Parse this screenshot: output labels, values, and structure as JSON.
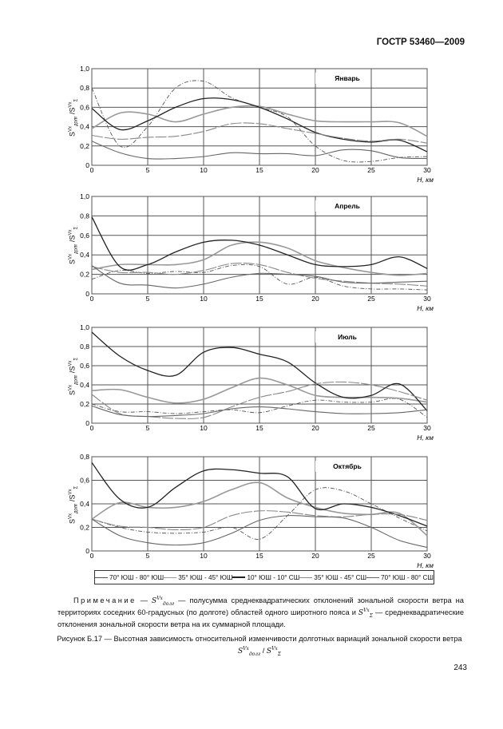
{
  "header": {
    "standard": "ГОСТР 53460—2009"
  },
  "x_axis_label": "H, км",
  "y_axis_label": {
    "base": "S",
    "sup": "Vx",
    "sub": "долг",
    "sep": " /",
    "base2": "S",
    "sup2": "Vx",
    "sub2": "Σ"
  },
  "legend": [
    {
      "label": "70° ЮШ - 80° ЮШ",
      "color": "#555555"
    },
    {
      "label": "35° ЮШ - 45° ЮШ",
      "color": "#999999"
    },
    {
      "label": "10° ЮШ - 10° СШ",
      "color": "#222222"
    },
    {
      "label": "35° ЮШ - 45° СШ",
      "color": "#888888"
    },
    {
      "label": "70° ЮШ - 80° СШ",
      "color": "#666666"
    }
  ],
  "chart_data": [
    {
      "type": "line",
      "title": "Январь",
      "xlabel": "H, км",
      "ylabel": "S^Vx_долг / S^Vx_Σ",
      "xlim": [
        0,
        30
      ],
      "ylim": [
        0,
        1.0
      ],
      "grid": true,
      "xticks": [
        "0",
        "5",
        "10",
        "15",
        "20",
        "25",
        "30"
      ],
      "yticks": [
        "0",
        "0,2",
        "0,4",
        "0,6",
        "0,8",
        "1,0"
      ],
      "x": [
        0,
        2.5,
        5,
        7.5,
        10,
        12.5,
        15,
        17.5,
        20,
        22.5,
        25,
        27.5,
        30
      ],
      "series": [
        {
          "name": "70° ЮШ - 80° ЮШ",
          "values": [
            0.8,
            0.2,
            0.4,
            0.8,
            0.87,
            0.7,
            0.6,
            0.5,
            0.2,
            0.05,
            0.04,
            0.08,
            0.09
          ]
        },
        {
          "name": "35° ЮШ - 45° ЮШ",
          "values": [
            0.38,
            0.54,
            0.53,
            0.45,
            0.53,
            0.6,
            0.61,
            0.53,
            0.46,
            0.45,
            0.45,
            0.44,
            0.3
          ]
        },
        {
          "name": "10° ЮШ - 10° СШ",
          "values": [
            0.59,
            0.37,
            0.46,
            0.6,
            0.69,
            0.68,
            0.6,
            0.48,
            0.34,
            0.27,
            0.24,
            0.26,
            0.14
          ]
        },
        {
          "name": "35° ЮШ - 45° СШ",
          "values": [
            0.31,
            0.27,
            0.29,
            0.3,
            0.35,
            0.43,
            0.43,
            0.38,
            0.33,
            0.28,
            0.25,
            0.27,
            0.23
          ]
        },
        {
          "name": "70° ЮШ - 80° СШ",
          "values": [
            0.25,
            0.13,
            0.07,
            0.07,
            0.09,
            0.13,
            0.12,
            0.12,
            0.1,
            0.16,
            0.15,
            0.08,
            0.07
          ]
        }
      ]
    },
    {
      "type": "line",
      "title": "Апрель",
      "xlabel": "H, км",
      "ylabel": "S^Vx_долг / S^Vx_Σ",
      "xlim": [
        0,
        30
      ],
      "ylim": [
        0,
        1.0
      ],
      "grid": true,
      "xticks": [
        "0",
        "5",
        "10",
        "15",
        "20",
        "25",
        "30"
      ],
      "yticks": [
        "0",
        "0,2",
        "0,4",
        "0,6",
        "0,8",
        "1,0"
      ],
      "x": [
        0,
        2.5,
        5,
        7.5,
        10,
        12.5,
        15,
        17.5,
        20,
        22.5,
        25,
        27.5,
        30
      ],
      "series": [
        {
          "name": "70° ЮШ - 80° ЮШ",
          "values": [
            0.15,
            0.24,
            0.21,
            0.23,
            0.22,
            0.29,
            0.28,
            0.1,
            0.17,
            0.08,
            0.05,
            0.05,
            0.04
          ]
        },
        {
          "name": "35° ЮШ - 45° ЮШ",
          "values": [
            0.25,
            0.3,
            0.3,
            0.3,
            0.35,
            0.5,
            0.53,
            0.47,
            0.34,
            0.27,
            0.22,
            0.19,
            0.21
          ]
        },
        {
          "name": "10° ЮШ - 10° СШ",
          "values": [
            0.79,
            0.28,
            0.3,
            0.43,
            0.53,
            0.55,
            0.5,
            0.4,
            0.3,
            0.28,
            0.3,
            0.38,
            0.26
          ]
        },
        {
          "name": "35° ЮШ - 45° СШ",
          "values": [
            0.28,
            0.22,
            0.22,
            0.2,
            0.24,
            0.31,
            0.3,
            0.22,
            0.16,
            0.13,
            0.11,
            0.1,
            0.08
          ]
        },
        {
          "name": "70° ЮШ - 80° СШ",
          "values": [
            0.29,
            0.11,
            0.09,
            0.06,
            0.1,
            0.17,
            0.21,
            0.2,
            0.18,
            0.12,
            0.11,
            0.12,
            0.13
          ]
        }
      ]
    },
    {
      "type": "line",
      "title": "Июль",
      "xlabel": "H, км",
      "ylabel": "S^Vx_долг / S^Vx_Σ",
      "xlim": [
        0,
        30
      ],
      "ylim": [
        0,
        1.0
      ],
      "grid": true,
      "xticks": [
        "0",
        "5",
        "10",
        "15",
        "20",
        "25",
        "30"
      ],
      "yticks": [
        "0",
        "0,2",
        "0,4",
        "0,6",
        "0,8",
        "1,0"
      ],
      "x": [
        0,
        2.5,
        5,
        7.5,
        10,
        12.5,
        15,
        17.5,
        20,
        22.5,
        25,
        27.5,
        30
      ],
      "series": [
        {
          "name": "70° ЮШ - 80° ЮШ",
          "values": [
            0.2,
            0.12,
            0.12,
            0.1,
            0.12,
            0.14,
            0.11,
            0.18,
            0.24,
            0.22,
            0.22,
            0.25,
            0.06
          ]
        },
        {
          "name": "35° ЮШ - 45° ЮШ",
          "values": [
            0.34,
            0.35,
            0.27,
            0.21,
            0.25,
            0.37,
            0.47,
            0.4,
            0.29,
            0.27,
            0.27,
            0.26,
            0.22
          ]
        },
        {
          "name": "10° ЮШ - 10° СШ",
          "values": [
            0.95,
            0.7,
            0.55,
            0.5,
            0.74,
            0.79,
            0.72,
            0.64,
            0.42,
            0.27,
            0.29,
            0.41,
            0.13
          ]
        },
        {
          "name": "35° ЮШ - 45° СШ",
          "values": [
            0.3,
            0.1,
            0.07,
            0.05,
            0.06,
            0.17,
            0.27,
            0.33,
            0.41,
            0.43,
            0.4,
            0.33,
            0.24
          ]
        },
        {
          "name": "70° ЮШ - 80° СШ",
          "values": [
            0.18,
            0.09,
            0.07,
            0.08,
            0.1,
            0.15,
            0.17,
            0.15,
            0.12,
            0.1,
            0.1,
            0.11,
            0.14
          ]
        }
      ]
    },
    {
      "type": "line",
      "title": "Октябрь",
      "xlabel": "H, км",
      "ylabel": "S^Vx_долг / S^Vx_Σ",
      "xlim": [
        0,
        30
      ],
      "ylim": [
        0,
        0.8
      ],
      "grid": true,
      "xticks": [
        "0",
        "5",
        "10",
        "15",
        "20",
        "25",
        "30"
      ],
      "yticks": [
        "0",
        "0,2",
        "0,4",
        "0,6",
        "0,8"
      ],
      "x": [
        0,
        2.5,
        5,
        7.5,
        10,
        12.5,
        15,
        17.5,
        20,
        22.5,
        25,
        27.5,
        30
      ],
      "series": [
        {
          "name": "70° ЮШ - 80° ЮШ",
          "values": [
            0.27,
            0.2,
            0.16,
            0.15,
            0.16,
            0.2,
            0.1,
            0.3,
            0.52,
            0.51,
            0.4,
            0.28,
            0.17
          ]
        },
        {
          "name": "35° ЮШ - 45° ЮШ",
          "values": [
            0.27,
            0.41,
            0.37,
            0.37,
            0.42,
            0.52,
            0.58,
            0.45,
            0.37,
            0.32,
            0.31,
            0.32,
            0.13
          ]
        },
        {
          "name": "10° ЮШ - 10° СШ",
          "values": [
            0.75,
            0.44,
            0.37,
            0.54,
            0.68,
            0.69,
            0.66,
            0.63,
            0.36,
            0.4,
            0.37,
            0.3,
            0.21
          ]
        },
        {
          "name": "35° ЮШ - 45° СШ",
          "values": [
            0.27,
            0.21,
            0.2,
            0.18,
            0.2,
            0.3,
            0.34,
            0.33,
            0.3,
            0.29,
            0.31,
            0.31,
            0.26
          ]
        },
        {
          "name": "70° ЮШ - 80° СШ",
          "values": [
            0.27,
            0.13,
            0.07,
            0.05,
            0.07,
            0.15,
            0.26,
            0.3,
            0.29,
            0.28,
            0.2,
            0.09,
            0.03
          ]
        }
      ]
    }
  ],
  "note": {
    "label": "Примечание",
    "dash": " — ",
    "sym1": {
      "base": "S",
      "sup": "Vx",
      "sub": "долг"
    },
    "text1": " — полусумма среднеквадратических отклонений зональной скорости ветра на территориях соседних 60-градусных (по долготе) областей одного широтного пояса и ",
    "sym2": {
      "base": "S",
      "sup": "Vx",
      "sub": "Σ"
    },
    "text2": " — среднеквадратические отклонения зональной скорости ветра на их суммарной площади."
  },
  "caption": {
    "text": "Рисунок Б.17 — Высотная зависимость относительной изменчивости долготных вариаций зональной скорости ветра ",
    "sym1": {
      "base": "S",
      "sup": "Vx",
      "sub": "долг"
    },
    "sep": " / ",
    "sym2": {
      "base": "S",
      "sup": "Vx",
      "sub": "Σ"
    }
  },
  "page_number": "243"
}
